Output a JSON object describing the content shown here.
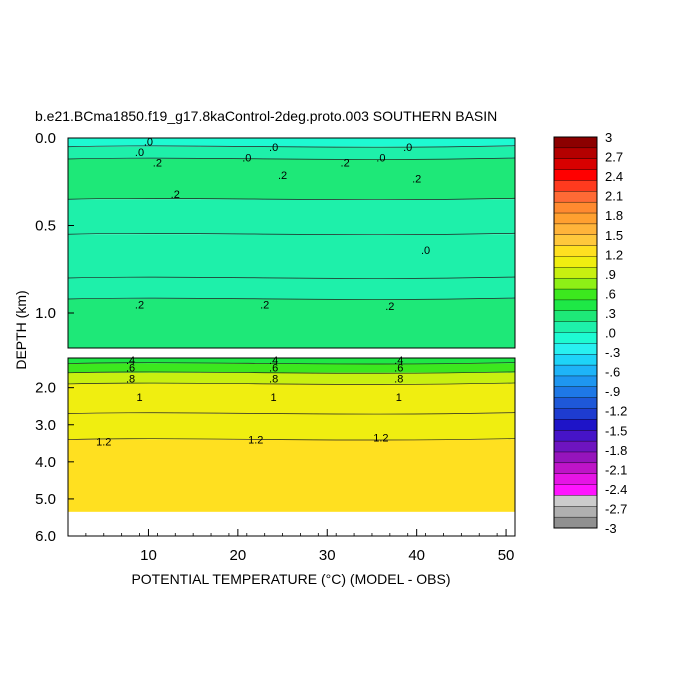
{
  "chart_data": {
    "type": "heatmap",
    "title": "b.e21.BCma1850.f19_g17.8kaControl-2deg.proto.003 SOUTHERN BASIN",
    "xlabel": "POTENTIAL TEMPERATURE (°C) (MODEL - OBS)",
    "ylabel": "DEPTH (km)",
    "xlim": [
      1,
      51
    ],
    "x_ticks": [
      "10",
      "20",
      "30",
      "40",
      "50"
    ],
    "upper_panel": {
      "ylim": [
        0.0,
        1.2
      ],
      "y_ticks": [
        "0.0",
        "0.5",
        "1.0"
      ],
      "bands": [
        {
          "depth_from": 0.0,
          "depth_to": 0.05,
          "value": 0.0
        },
        {
          "depth_from": 0.05,
          "depth_to": 0.12,
          "value": 0.1
        },
        {
          "depth_from": 0.12,
          "depth_to": 0.35,
          "value": 0.2
        },
        {
          "depth_from": 0.35,
          "depth_to": 0.55,
          "value": 0.15
        },
        {
          "depth_from": 0.55,
          "depth_to": 0.8,
          "value": 0.1
        },
        {
          "depth_from": 0.8,
          "depth_to": 0.92,
          "value": 0.15
        },
        {
          "depth_from": 0.92,
          "depth_to": 1.2,
          "value": 0.25
        }
      ],
      "contour_labels": [
        {
          "text": ".0",
          "x": 10,
          "depth": 0.02
        },
        {
          "text": ".0",
          "x": 9,
          "depth": 0.08
        },
        {
          "text": ".0",
          "x": 24,
          "depth": 0.05
        },
        {
          "text": ".0",
          "x": 21,
          "depth": 0.11
        },
        {
          "text": ".0",
          "x": 39,
          "depth": 0.05
        },
        {
          "text": ".0",
          "x": 36,
          "depth": 0.11
        },
        {
          "text": ".2",
          "x": 11,
          "depth": 0.14
        },
        {
          "text": ".2",
          "x": 32,
          "depth": 0.14
        },
        {
          "text": ".2",
          "x": 25,
          "depth": 0.21
        },
        {
          "text": ".2",
          "x": 40,
          "depth": 0.23
        },
        {
          "text": ".2",
          "x": 13,
          "depth": 0.32
        },
        {
          "text": ".0",
          "x": 41,
          "depth": 0.64
        },
        {
          "text": ".2",
          "x": 9,
          "depth": 0.95
        },
        {
          "text": ".2",
          "x": 23,
          "depth": 0.95
        },
        {
          "text": ".2",
          "x": 37,
          "depth": 0.96
        }
      ]
    },
    "lower_panel": {
      "ylim": [
        1.2,
        6.0
      ],
      "y_ticks": [
        "2.0",
        "3.0",
        "4.0",
        "5.0",
        "6.0"
      ],
      "bands": [
        {
          "depth_from": 1.2,
          "depth_to": 1.35,
          "value": 0.45
        },
        {
          "depth_from": 1.35,
          "depth_to": 1.6,
          "value": 0.65
        },
        {
          "depth_from": 1.6,
          "depth_to": 1.9,
          "value": 0.85
        },
        {
          "depth_from": 1.9,
          "depth_to": 2.7,
          "value": 1.05
        },
        {
          "depth_from": 2.7,
          "depth_to": 3.4,
          "value": 1.15
        },
        {
          "depth_from": 3.4,
          "depth_to": 5.35,
          "value": 1.3
        }
      ],
      "contour_labels": [
        {
          "text": ".4",
          "x": 8,
          "depth": 1.25
        },
        {
          "text": ".6",
          "x": 8,
          "depth": 1.45
        },
        {
          "text": ".8",
          "x": 8,
          "depth": 1.75
        },
        {
          "text": "1",
          "x": 9,
          "depth": 2.25
        },
        {
          "text": "1.2",
          "x": 5,
          "depth": 3.45
        },
        {
          "text": ".4",
          "x": 24,
          "depth": 1.25
        },
        {
          "text": ".6",
          "x": 24,
          "depth": 1.45
        },
        {
          "text": ".8",
          "x": 24,
          "depth": 1.75
        },
        {
          "text": "1",
          "x": 24,
          "depth": 2.25
        },
        {
          "text": "1.2",
          "x": 22,
          "depth": 3.4
        },
        {
          "text": ".4",
          "x": 38,
          "depth": 1.25
        },
        {
          "text": ".6",
          "x": 38,
          "depth": 1.45
        },
        {
          "text": ".8",
          "x": 38,
          "depth": 1.75
        },
        {
          "text": "1",
          "x": 38,
          "depth": 2.25
        },
        {
          "text": "1.2",
          "x": 36,
          "depth": 3.35
        }
      ]
    },
    "colorbar": {
      "range": [
        -3,
        3
      ],
      "labels": [
        "3",
        "2.7",
        "2.4",
        "2.1",
        "1.8",
        "1.5",
        "1.2",
        ".9",
        ".6",
        ".3",
        ".0",
        "-.3",
        "-.6",
        "-.9",
        "-1.2",
        "-1.5",
        "-1.8",
        "-2.1",
        "-2.4",
        "-2.7",
        "-3"
      ],
      "colors": [
        "#8c0000",
        "#b40000",
        "#d80000",
        "#ff0000",
        "#ff3a1e",
        "#ff6a35",
        "#ff8a30",
        "#ffa030",
        "#ffb43a",
        "#ffc83c",
        "#ffe020",
        "#f0ee10",
        "#c8f010",
        "#8ef016",
        "#3ce81e",
        "#1ee846",
        "#1ee878",
        "#1ef0aa",
        "#1efad2",
        "#28f0f0",
        "#1ed4f8",
        "#1eb4f8",
        "#1e96f0",
        "#1e78e6",
        "#1e58d8",
        "#1e3cd0",
        "#1e14c8",
        "#4614c8",
        "#6e14c0",
        "#9614bc",
        "#be14c8",
        "#e614e6",
        "#ff14ff",
        "#cccccc",
        "#b0b0b0",
        "#909090"
      ]
    }
  }
}
